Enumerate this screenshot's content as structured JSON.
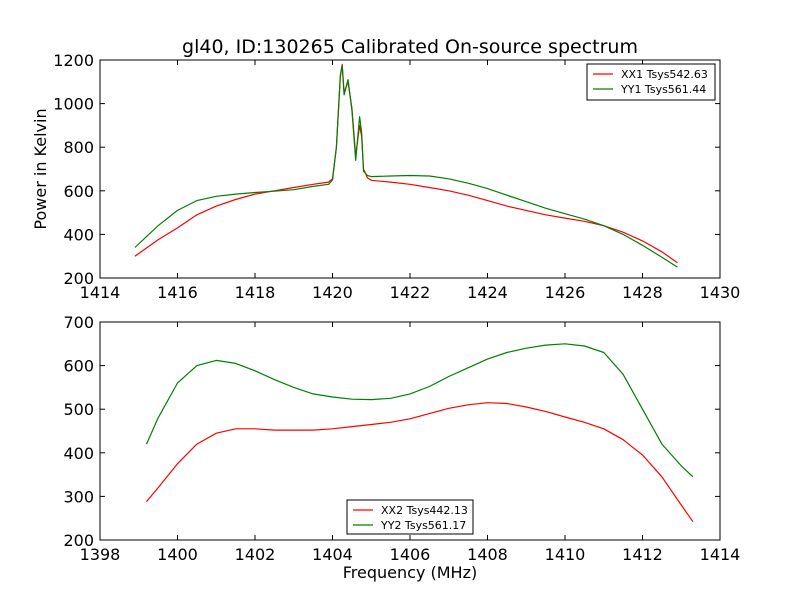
{
  "chart_data": [
    {
      "type": "line",
      "title": "gl40, ID:130265 Calibrated On-source spectrum",
      "xlabel": "",
      "ylabel": "Power in Kelvin",
      "xlim": [
        1414,
        1430
      ],
      "ylim": [
        200,
        1200
      ],
      "xticks": [
        "1414",
        "1416",
        "1418",
        "1420",
        "1422",
        "1424",
        "1426",
        "1428",
        "1430"
      ],
      "yticks": [
        "200",
        "400",
        "600",
        "800",
        "1000",
        "1200"
      ],
      "legend_position": "top-right",
      "series": [
        {
          "name": "XX1 Tsys542.63",
          "color": "#ff0000",
          "x": [
            1414.9,
            1415.5,
            1416.0,
            1416.5,
            1417.0,
            1417.5,
            1418.0,
            1418.5,
            1419.0,
            1419.5,
            1419.9,
            1420.0,
            1420.1,
            1420.2,
            1420.25,
            1420.3,
            1420.4,
            1420.5,
            1420.6,
            1420.7,
            1420.75,
            1420.8,
            1420.9,
            1421.0,
            1421.5,
            1422.0,
            1422.5,
            1423.0,
            1423.5,
            1424.0,
            1424.5,
            1425.0,
            1425.5,
            1426.0,
            1426.5,
            1427.0,
            1427.5,
            1428.0,
            1428.5,
            1428.9
          ],
          "y": [
            300,
            375,
            430,
            490,
            530,
            560,
            585,
            600,
            615,
            630,
            640,
            655,
            800,
            1120,
            1180,
            1050,
            1100,
            980,
            760,
            900,
            850,
            700,
            660,
            648,
            640,
            630,
            615,
            600,
            580,
            555,
            530,
            510,
            490,
            475,
            460,
            440,
            410,
            370,
            320,
            270
          ]
        },
        {
          "name": "YY1 Tsys561.44",
          "color": "#008000",
          "x": [
            1414.9,
            1415.5,
            1416.0,
            1416.5,
            1417.0,
            1417.5,
            1418.0,
            1418.5,
            1419.0,
            1419.5,
            1419.9,
            1420.0,
            1420.1,
            1420.2,
            1420.25,
            1420.3,
            1420.4,
            1420.5,
            1420.6,
            1420.7,
            1420.75,
            1420.8,
            1420.9,
            1421.0,
            1421.5,
            1422.0,
            1422.5,
            1423.0,
            1423.5,
            1424.0,
            1424.5,
            1425.0,
            1425.5,
            1426.0,
            1426.5,
            1427.0,
            1427.5,
            1428.0,
            1428.5,
            1428.9
          ],
          "y": [
            340,
            440,
            510,
            555,
            575,
            585,
            592,
            598,
            605,
            620,
            630,
            650,
            800,
            1130,
            1175,
            1040,
            1110,
            970,
            740,
            940,
            870,
            690,
            670,
            665,
            668,
            670,
            668,
            655,
            635,
            610,
            580,
            550,
            520,
            495,
            470,
            440,
            400,
            350,
            295,
            250
          ]
        }
      ]
    },
    {
      "type": "line",
      "title": "",
      "xlabel": "Frequency (MHz)",
      "ylabel": "",
      "xlim": [
        1398,
        1414
      ],
      "ylim": [
        200,
        700
      ],
      "xticks": [
        "1398",
        "1400",
        "1402",
        "1404",
        "1406",
        "1408",
        "1410",
        "1412",
        "1414"
      ],
      "yticks": [
        "200",
        "300",
        "400",
        "500",
        "600",
        "700"
      ],
      "legend_position": "lower-center",
      "series": [
        {
          "name": "XX2 Tsys442.13",
          "color": "#ff0000",
          "x": [
            1399.2,
            1399.5,
            1400.0,
            1400.5,
            1401.0,
            1401.5,
            1402.0,
            1402.5,
            1403.0,
            1403.5,
            1404.0,
            1404.5,
            1405.0,
            1405.5,
            1406.0,
            1406.5,
            1407.0,
            1407.5,
            1408.0,
            1408.5,
            1409.0,
            1409.5,
            1410.0,
            1410.5,
            1411.0,
            1411.5,
            1412.0,
            1412.5,
            1413.0,
            1413.3
          ],
          "y": [
            288,
            320,
            375,
            420,
            445,
            455,
            455,
            452,
            452,
            452,
            455,
            460,
            465,
            470,
            478,
            490,
            502,
            510,
            515,
            513,
            505,
            495,
            482,
            470,
            455,
            430,
            395,
            345,
            280,
            242
          ]
        },
        {
          "name": "YY2 Tsys561.17",
          "color": "#008000",
          "x": [
            1399.2,
            1399.5,
            1400.0,
            1400.5,
            1401.0,
            1401.5,
            1402.0,
            1402.5,
            1403.0,
            1403.5,
            1404.0,
            1404.5,
            1405.0,
            1405.5,
            1406.0,
            1406.5,
            1407.0,
            1407.5,
            1408.0,
            1408.5,
            1409.0,
            1409.5,
            1410.0,
            1410.5,
            1411.0,
            1411.5,
            1412.0,
            1412.5,
            1413.0,
            1413.3
          ],
          "y": [
            420,
            480,
            560,
            600,
            612,
            605,
            588,
            568,
            550,
            535,
            528,
            523,
            522,
            525,
            535,
            552,
            575,
            595,
            615,
            630,
            640,
            647,
            650,
            645,
            630,
            580,
            500,
            420,
            370,
            345
          ]
        }
      ]
    }
  ]
}
